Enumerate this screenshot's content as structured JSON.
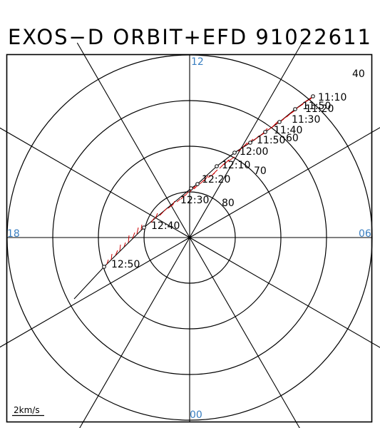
{
  "title": "EXOS−D ORBIT+EFD 91022611",
  "colors": {
    "frame": "#000000",
    "grid": "#000000",
    "orbit": "#000000",
    "efd_vectors": "#cc0000",
    "mlt_labels": "#3a7fc1"
  },
  "mlt_labels": {
    "top": "12",
    "left": "18",
    "right": "06",
    "bottom": "00"
  },
  "latitude_labels": [
    "40",
    "60",
    "70",
    "80"
  ],
  "time_labels": [
    "11:10",
    "11:20",
    "11:30",
    "11:40",
    "11:50",
    "12:00",
    "12:10",
    "12:20",
    "12:30",
    "12:40",
    "12:50"
  ],
  "time_labels_overlap": "11:50",
  "scale_label": "2km/s",
  "icons": {
    "orbit-markers": "open-circle"
  }
}
